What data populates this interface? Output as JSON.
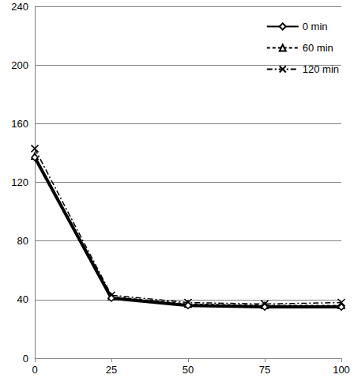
{
  "chart_data": {
    "type": "line",
    "x": [
      0,
      25,
      50,
      75,
      100
    ],
    "xlim": [
      0,
      100
    ],
    "xticks": [
      0,
      25,
      50,
      75,
      100
    ],
    "ylim": [
      0,
      240
    ],
    "yticks": [
      0,
      40,
      80,
      120,
      160,
      200,
      240
    ],
    "grid": true,
    "legend": "upper right",
    "series": [
      {
        "name": "0 min",
        "color": "#000000",
        "marker": "diamond",
        "line_style": "solid",
        "values": [
          137,
          41,
          36,
          35,
          35
        ]
      },
      {
        "name": "60 min",
        "color": "#000000",
        "marker": "triangle",
        "line_style": "dashed",
        "values": [
          138,
          42,
          37,
          36,
          36
        ]
      },
      {
        "name": "120 min",
        "color": "#000000",
        "marker": "x",
        "line_style": "dashdot",
        "values": [
          143,
          43,
          38,
          37,
          38
        ]
      }
    ]
  }
}
